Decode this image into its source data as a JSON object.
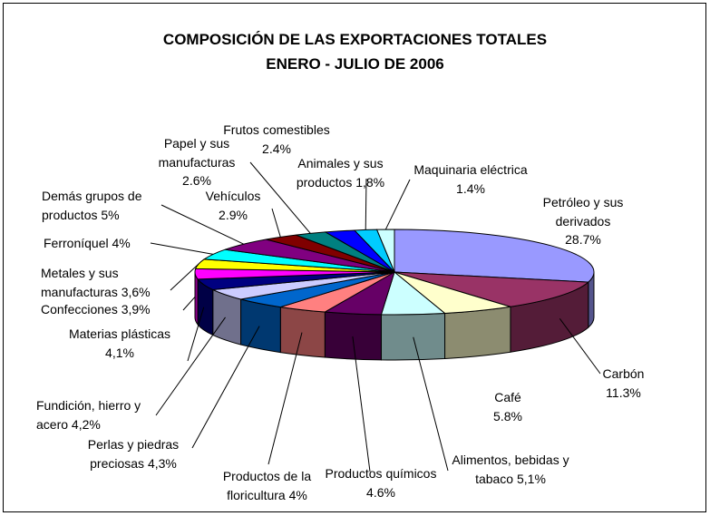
{
  "chart_data": {
    "type": "pie3d",
    "title": [
      "COMPOSICIÓN DE LAS EXPORTACIONES TOTALES",
      "ENERO - JULIO DE 2006"
    ],
    "categories": [
      "Petróleo y sus derivados",
      "Carbón",
      "Café",
      "Alimentos, bebidas y tabaco",
      "Productos químicos",
      "Productos de la floricultura",
      "Perlas y piedras preciosas",
      "Fundición, hierro y acero",
      "Materias plásticas",
      "Confecciones",
      "Metales y sus manufacturas",
      "Ferroníquel",
      "Demás grupos de productos",
      "Vehículos",
      "Papel y sus manufacturas",
      "Frutos comestibles",
      "Animales y sus productos",
      "Maquinaria eléctrica"
    ],
    "values": [
      28.7,
      11.3,
      5.8,
      5.1,
      4.6,
      4,
      4.3,
      4.2,
      4.1,
      3.9,
      3.6,
      4,
      5,
      2.9,
      2.6,
      2.4,
      1.8,
      1.4
    ],
    "value_labels": [
      "28.7%",
      "11.3%",
      "5.8%",
      "5,1%",
      "4.6%",
      "4%",
      "4,3%",
      "4,2%",
      "4,1%",
      "3,9%",
      "3,6%",
      "4%",
      "5%",
      "2.9%",
      "2.6%",
      "2.4%",
      "1,8%",
      "1.4%"
    ],
    "colors": [
      "#9999ff",
      "#993366",
      "#ffffcc",
      "#ccffff",
      "#660066",
      "#ff8080",
      "#0066cc",
      "#ccccff",
      "#000080",
      "#ff00ff",
      "#ffff00",
      "#00ffff",
      "#800080",
      "#800000",
      "#008080",
      "#0000ff",
      "#00ccff",
      "#ccffff"
    ]
  }
}
